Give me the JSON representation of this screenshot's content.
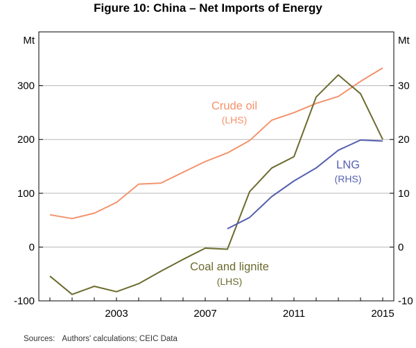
{
  "chart_data": {
    "type": "line",
    "title": "Figure 10: China – Net Imports of Energy",
    "left_axis": {
      "unit_label": "Mt",
      "ylim": [
        -100,
        400
      ],
      "ticks": [
        -100,
        0,
        100,
        200,
        300
      ]
    },
    "right_axis": {
      "unit_label": "Mt",
      "ylim": [
        -10,
        40
      ],
      "ticks": [
        -10,
        0,
        10,
        20,
        30
      ]
    },
    "x_axis": {
      "xlim": [
        1999.5,
        2015.5
      ],
      "ticks": [
        2003,
        2007,
        2011,
        2015
      ]
    },
    "series": [
      {
        "name": "Crude oil",
        "axis_note": "(LHS)",
        "axis": "left",
        "color": "#f4926b",
        "x": [
          2000,
          2001,
          2002,
          2003,
          2004,
          2005,
          2006,
          2007,
          2008,
          2009,
          2010,
          2011,
          2012,
          2013,
          2014,
          2015
        ],
        "values": [
          60,
          53,
          63,
          83,
          117,
          119,
          139,
          159,
          175,
          198,
          236,
          250,
          267,
          280,
          308,
          333
        ]
      },
      {
        "name": "Coal and lignite",
        "axis_note": "(LHS)",
        "axis": "left",
        "color": "#6b6b2f",
        "x": [
          2000,
          2001,
          2002,
          2003,
          2004,
          2005,
          2006,
          2007,
          2008,
          2009,
          2010,
          2011,
          2012,
          2013,
          2014,
          2015
        ],
        "values": [
          -54,
          -88,
          -73,
          -83,
          -68,
          -45,
          -23,
          -2,
          -4,
          103,
          147,
          168,
          279,
          320,
          285,
          200
        ]
      },
      {
        "name": "LNG",
        "axis_note": "(RHS)",
        "axis": "right",
        "color": "#5560b0",
        "x": [
          2008,
          2009,
          2010,
          2011,
          2012,
          2013,
          2014,
          2015
        ],
        "values": [
          3.4,
          5.5,
          9.4,
          12.3,
          14.7,
          18.0,
          19.9,
          19.7
        ]
      }
    ]
  },
  "sources": {
    "label": "Sources:",
    "text": "Authors' calculations; CEIC Data"
  }
}
